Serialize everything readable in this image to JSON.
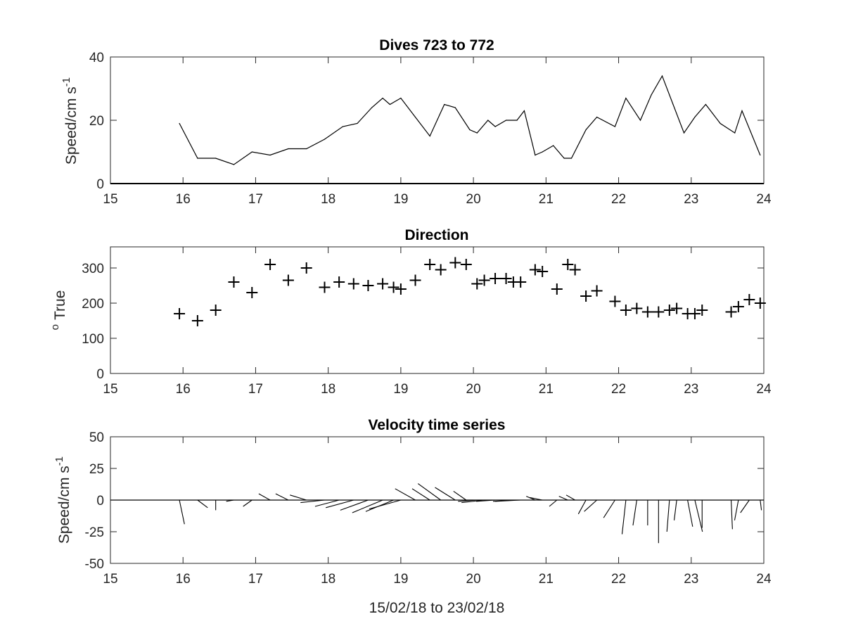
{
  "chart_data": [
    {
      "type": "line",
      "title": "Dives 723 to 772",
      "ylabel": "Speed/cm s",
      "ylabel_sup": "-1",
      "xlim": [
        15,
        24
      ],
      "ylim": [
        0,
        40
      ],
      "xticks": [
        "15",
        "16",
        "17",
        "18",
        "19",
        "20",
        "21",
        "22",
        "23",
        "24"
      ],
      "yticks": [
        "0",
        "20",
        "40"
      ],
      "x": [
        15.95,
        16.2,
        16.45,
        16.7,
        16.95,
        17.2,
        17.45,
        17.7,
        17.95,
        18.2,
        18.4,
        18.6,
        18.75,
        18.85,
        19.0,
        19.2,
        19.4,
        19.6,
        19.75,
        19.95,
        20.05,
        20.2,
        20.3,
        20.45,
        20.6,
        20.7,
        20.85,
        20.95,
        21.1,
        21.25,
        21.35,
        21.55,
        21.7,
        21.95,
        22.1,
        22.3,
        22.45,
        22.6,
        22.75,
        22.9,
        23.05,
        23.2,
        23.4,
        23.6,
        23.7,
        23.95
      ],
      "y": [
        19,
        8,
        8,
        6,
        10,
        9,
        11,
        11,
        14,
        18,
        19,
        24,
        27,
        25,
        27,
        21,
        15,
        25,
        24,
        17,
        16,
        20,
        18,
        20,
        20,
        23,
        9,
        10,
        12,
        8,
        8,
        17,
        21,
        18,
        27,
        20,
        28,
        34,
        25,
        16,
        21,
        25,
        19,
        16,
        23,
        9
      ]
    },
    {
      "type": "scatter",
      "title": "Direction",
      "ylabel": "True",
      "ylabel_sup": "o",
      "marker": "+",
      "xlim": [
        15,
        24
      ],
      "ylim": [
        0,
        360
      ],
      "xticks": [
        "15",
        "16",
        "17",
        "18",
        "19",
        "20",
        "21",
        "22",
        "23",
        "24"
      ],
      "yticks": [
        "0",
        "100",
        "200",
        "300"
      ],
      "x": [
        15.95,
        16.2,
        16.45,
        16.7,
        16.95,
        17.2,
        17.45,
        17.7,
        17.95,
        18.15,
        18.35,
        18.55,
        18.75,
        18.9,
        19.0,
        19.2,
        19.4,
        19.55,
        19.75,
        19.9,
        20.05,
        20.15,
        20.3,
        20.45,
        20.55,
        20.65,
        20.85,
        20.95,
        21.15,
        21.3,
        21.4,
        21.55,
        21.7,
        21.95,
        22.1,
        22.25,
        22.4,
        22.55,
        22.7,
        22.8,
        22.95,
        23.05,
        23.15,
        23.55,
        23.65,
        23.8,
        23.95
      ],
      "y": [
        170,
        150,
        180,
        260,
        230,
        310,
        265,
        300,
        245,
        260,
        255,
        250,
        255,
        245,
        240,
        265,
        310,
        295,
        315,
        310,
        255,
        265,
        270,
        270,
        260,
        260,
        295,
        290,
        240,
        310,
        295,
        220,
        235,
        205,
        180,
        185,
        175,
        175,
        180,
        185,
        170,
        170,
        180,
        175,
        190,
        210,
        200
      ]
    },
    {
      "type": "feather",
      "title": "Velocity time series",
      "ylabel": "Speed/cm s",
      "ylabel_sup": "-1",
      "xlabel": "15/02/18 to 23/02/18",
      "xlim": [
        15,
        24
      ],
      "ylim": [
        -50,
        50
      ],
      "xticks": [
        "15",
        "16",
        "17",
        "18",
        "19",
        "20",
        "21",
        "22",
        "23",
        "24"
      ],
      "yticks": [
        "-50",
        "-25",
        "0",
        "25",
        "50"
      ],
      "vectors": [
        {
          "x": 15.95,
          "u": 4,
          "v": -19
        },
        {
          "x": 16.2,
          "u": 8,
          "v": -6
        },
        {
          "x": 16.45,
          "u": 0,
          "v": -8
        },
        {
          "x": 16.7,
          "u": -6,
          "v": -1
        },
        {
          "x": 16.95,
          "u": -7,
          "v": -5
        },
        {
          "x": 17.2,
          "u": -9,
          "v": 5
        },
        {
          "x": 17.45,
          "u": -10,
          "v": 5
        },
        {
          "x": 17.7,
          "u": -13,
          "v": 4
        },
        {
          "x": 17.95,
          "u": -19,
          "v": -2
        },
        {
          "x": 18.15,
          "u": -19,
          "v": -5
        },
        {
          "x": 18.35,
          "u": -22,
          "v": -6
        },
        {
          "x": 18.55,
          "u": -22,
          "v": -8
        },
        {
          "x": 18.75,
          "u": -24,
          "v": -10
        },
        {
          "x": 18.9,
          "u": -22,
          "v": -9
        },
        {
          "x": 19.0,
          "u": -25,
          "v": -7
        },
        {
          "x": 19.2,
          "u": -16,
          "v": 9
        },
        {
          "x": 19.4,
          "u": -14,
          "v": 9
        },
        {
          "x": 19.55,
          "u": -18,
          "v": 13
        },
        {
          "x": 19.75,
          "u": -16,
          "v": 10
        },
        {
          "x": 19.9,
          "u": -10,
          "v": 7
        },
        {
          "x": 20.05,
          "u": -15,
          "v": -1
        },
        {
          "x": 20.15,
          "u": -18,
          "v": -2
        },
        {
          "x": 20.3,
          "u": -15,
          "v": -1
        },
        {
          "x": 20.45,
          "u": -14,
          "v": 0
        },
        {
          "x": 20.55,
          "u": -16,
          "v": -1
        },
        {
          "x": 20.65,
          "u": -20,
          "v": -1
        },
        {
          "x": 20.85,
          "u": -7,
          "v": 3
        },
        {
          "x": 20.95,
          "u": -10,
          "v": 2
        },
        {
          "x": 21.15,
          "u": -6,
          "v": -5
        },
        {
          "x": 21.3,
          "u": -7,
          "v": 3
        },
        {
          "x": 21.4,
          "u": -7,
          "v": 4
        },
        {
          "x": 21.55,
          "u": -6,
          "v": -11
        },
        {
          "x": 21.7,
          "u": -10,
          "v": -9
        },
        {
          "x": 21.95,
          "u": -9,
          "v": -14
        },
        {
          "x": 22.1,
          "u": -3,
          "v": -27
        },
        {
          "x": 22.25,
          "u": -3,
          "v": -20
        },
        {
          "x": 22.4,
          "u": 0,
          "v": -20
        },
        {
          "x": 22.55,
          "u": 0,
          "v": -34
        },
        {
          "x": 22.7,
          "u": -2,
          "v": -25
        },
        {
          "x": 22.8,
          "u": -2,
          "v": -16
        },
        {
          "x": 22.95,
          "u": 4,
          "v": -21
        },
        {
          "x": 23.05,
          "u": 6,
          "v": -25
        },
        {
          "x": 23.15,
          "u": 0,
          "v": -22
        },
        {
          "x": 23.55,
          "u": 1,
          "v": -23
        },
        {
          "x": 23.65,
          "u": -3,
          "v": -16
        },
        {
          "x": 23.8,
          "u": -7,
          "v": -10
        },
        {
          "x": 23.95,
          "u": 1,
          "v": -8
        }
      ]
    }
  ]
}
